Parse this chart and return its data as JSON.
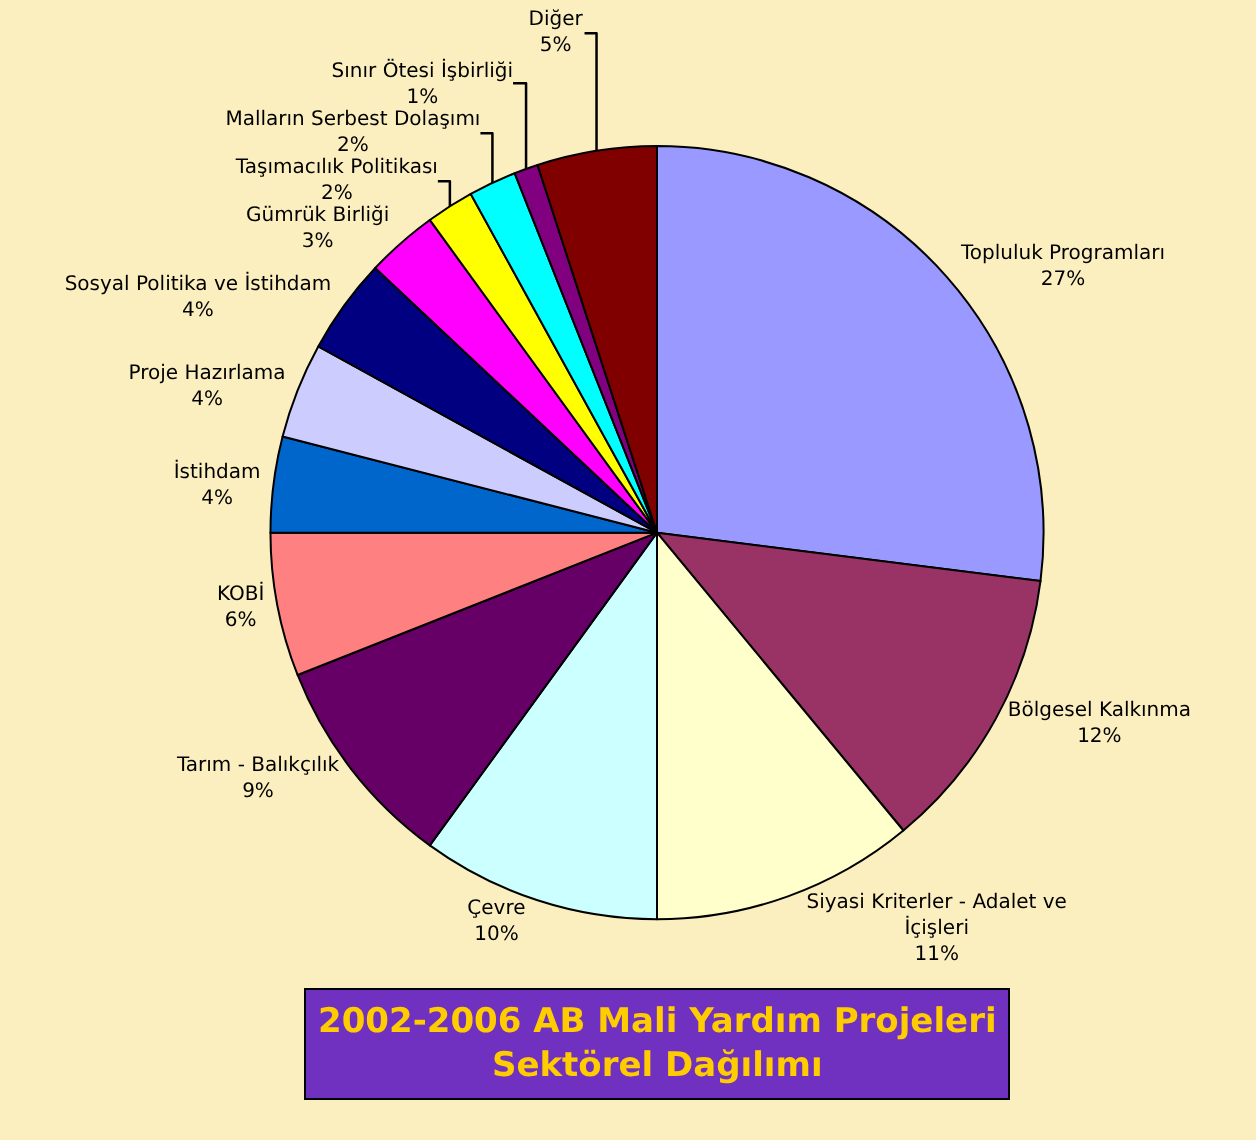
{
  "chart_data": {
    "type": "pie",
    "title": "2002-2006 AB Mali Yardım Projeleri\nSektörel Dağılımı",
    "categories": [
      "Topluluk Programları",
      "Bölgesel Kalkınma",
      "Siyasi Kriterler - Adalet ve\nİçişleri",
      "Çevre",
      "Tarım - Balıkçılık",
      "KOBİ",
      "İstihdam",
      "Proje Hazırlama",
      "Sosyal Politika ve İstihdam",
      "Gümrük Birliği",
      "Taşımacılık Politikası",
      "Malların Serbest Dolaşımı",
      "Sınır Ötesi İşbirliği",
      "Diğer"
    ],
    "values": [
      27,
      12,
      11,
      10,
      9,
      6,
      4,
      4,
      4,
      3,
      2,
      2,
      1,
      5
    ],
    "value_labels": [
      "27%",
      "12%",
      "11%",
      "10%",
      "9%",
      "6%",
      "4%",
      "4%",
      "4%",
      "3%",
      "2%",
      "2%",
      "1%",
      "5%"
    ],
    "colors": [
      "#9999ff",
      "#993366",
      "#ffffcc",
      "#ccffff",
      "#660066",
      "#ff8080",
      "#0066cc",
      "#ccccff",
      "#000080",
      "#ff00ff",
      "#ffff00",
      "#00ffff",
      "#800080",
      "#800000"
    ],
    "legend": false
  }
}
